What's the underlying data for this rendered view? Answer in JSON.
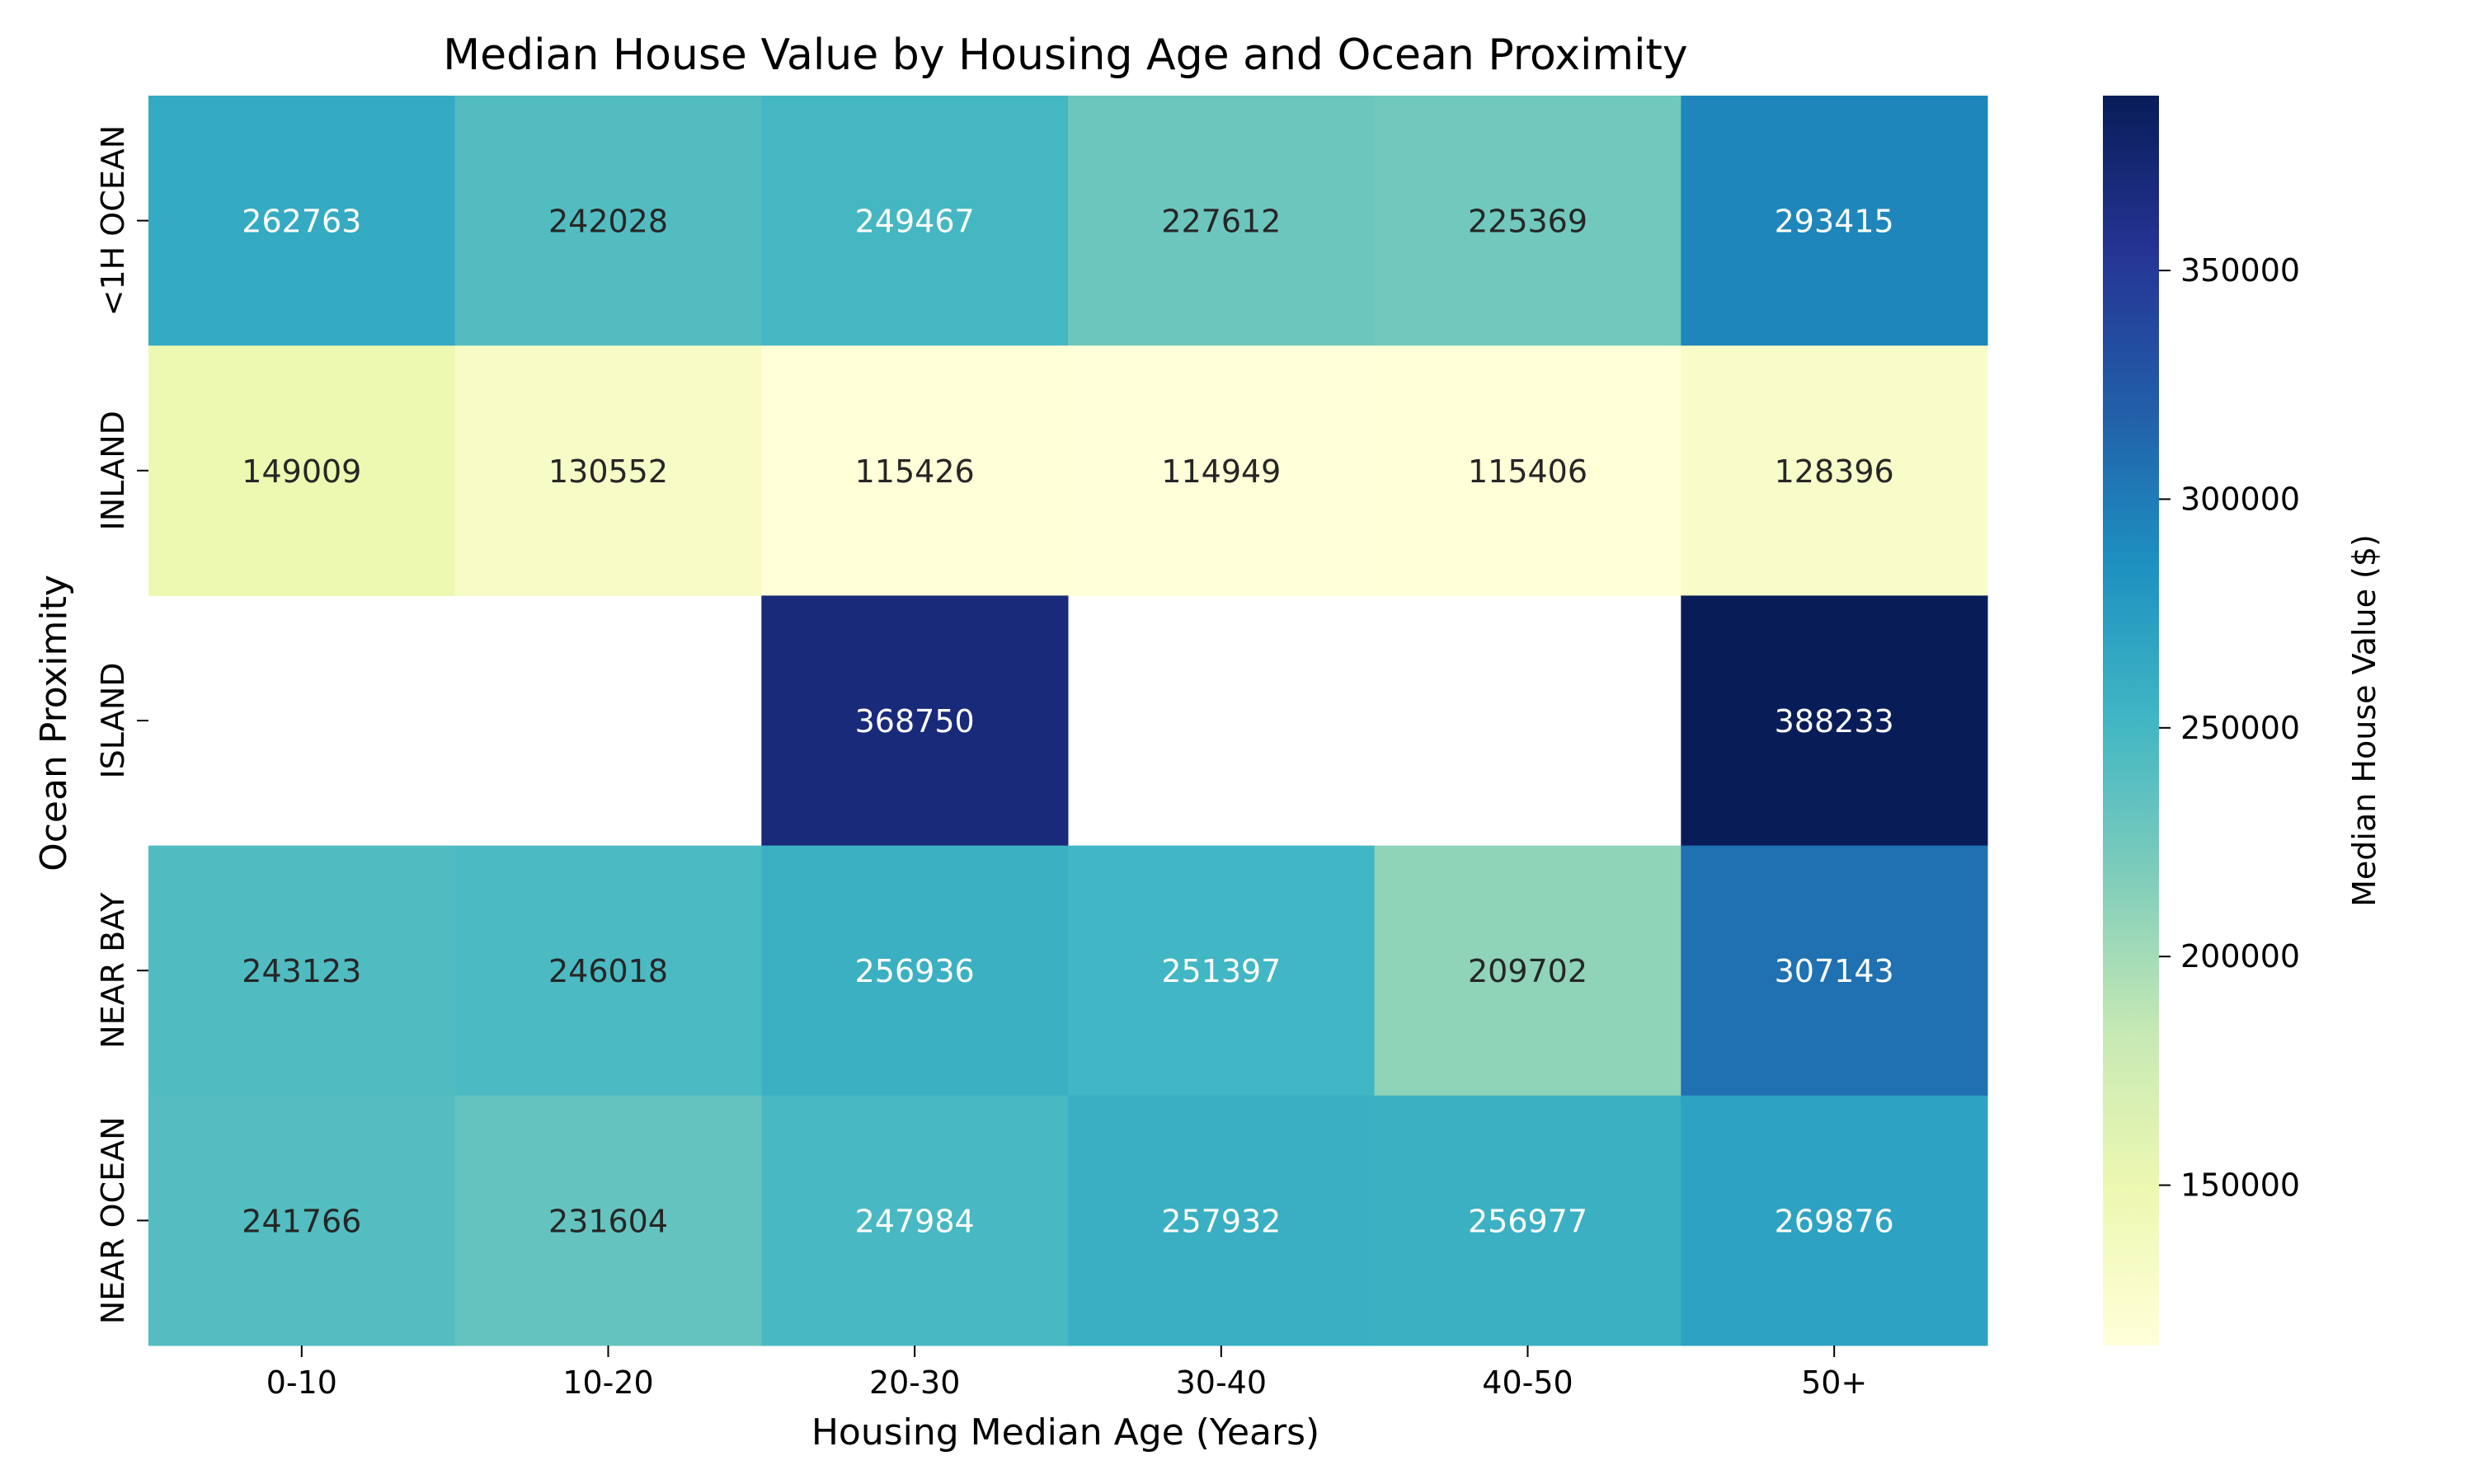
{
  "chart_data": {
    "type": "heatmap",
    "title": "Median House Value by Housing Age and Ocean Proximity",
    "xlabel": "Housing Median Age (Years)",
    "ylabel": "Ocean Proximity",
    "x_categories": [
      "0-10",
      "10-20",
      "20-30",
      "30-40",
      "40-50",
      "50+"
    ],
    "y_categories": [
      "<1H OCEAN",
      "INLAND",
      "ISLAND",
      "NEAR BAY",
      "NEAR OCEAN"
    ],
    "values": [
      [
        262763,
        242028,
        249467,
        227612,
        225369,
        293415
      ],
      [
        149009,
        130552,
        115426,
        114949,
        115406,
        128396
      ],
      [
        null,
        null,
        368750,
        null,
        null,
        388233
      ],
      [
        243123,
        246018,
        256936,
        251397,
        209702,
        307143
      ],
      [
        241766,
        231604,
        247984,
        257932,
        256977,
        269876
      ]
    ],
    "colorbar": {
      "label": "Median House Value ($)",
      "colormap": "YlGnBu",
      "range": [
        114949,
        388233
      ],
      "ticks": [
        150000,
        200000,
        250000,
        300000,
        350000
      ]
    }
  }
}
